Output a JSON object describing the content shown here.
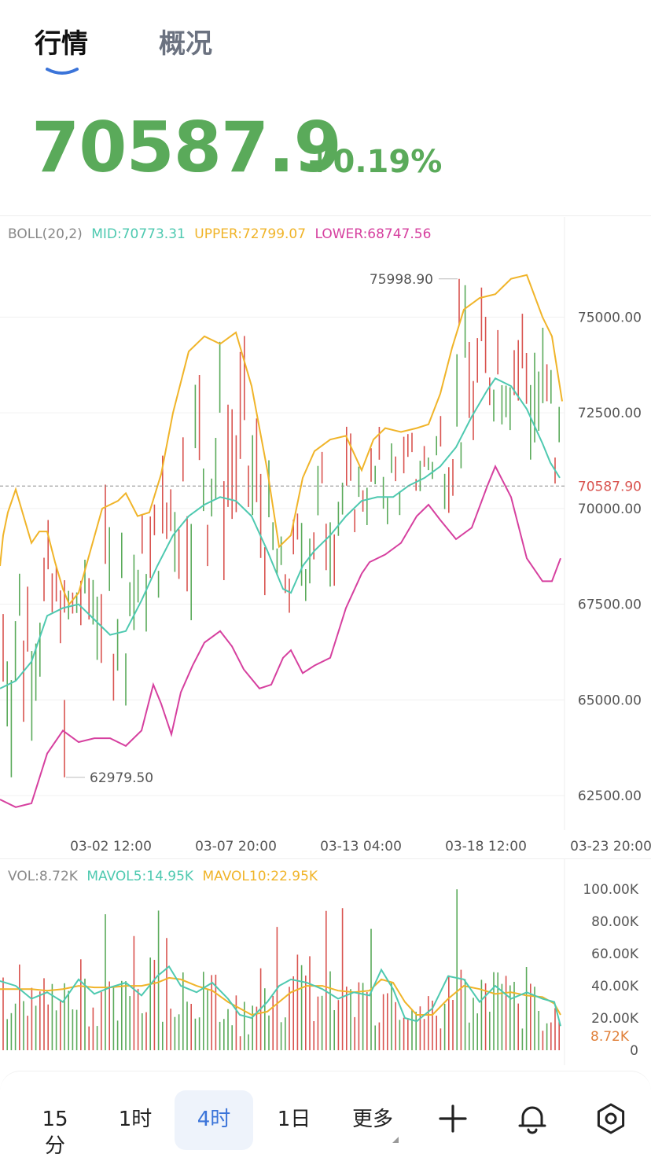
{
  "tabs": {
    "active": "行情",
    "inactive": "概况"
  },
  "ticker": {
    "price": "70587.9",
    "change": "+0.19%",
    "up_color": "#5aaa5a",
    "down_color": "#d9534f"
  },
  "chart_data": [
    {
      "type": "candlestick",
      "indicator": {
        "label": "BOLL(20,2)",
        "mid": "MID:70773.31",
        "upper": "UPPER:72799.07",
        "lower": "LOWER:68747.56"
      },
      "y_ticks": [
        "75000.00",
        "72500.00",
        "70000.00",
        "67500.00",
        "65000.00",
        "62500.00"
      ],
      "ylim": [
        61600,
        77000
      ],
      "x_ticks": [
        "03-02 12:00",
        "03-07 20:00",
        "03-13 04:00",
        "03-18 12:00",
        "03-23 20:00"
      ],
      "current_price_label": "70587.90",
      "current_price": 70587.9,
      "max_label": "75998.90",
      "max_value": 75998.9,
      "min_label": "62979.50",
      "min_value": 62979.5,
      "colors": {
        "mid": "#4ec9b0",
        "upper": "#f0b429",
        "lower": "#d6409f"
      },
      "upper_band": [
        [
          0,
          68500
        ],
        [
          4,
          69300
        ],
        [
          10,
          69900
        ],
        [
          20,
          70500
        ],
        [
          30,
          69800
        ],
        [
          40,
          69100
        ],
        [
          50,
          69400
        ],
        [
          60,
          69400
        ],
        [
          70,
          68600
        ],
        [
          80,
          67900
        ],
        [
          88,
          67500
        ],
        [
          100,
          67800
        ],
        [
          130,
          70000
        ],
        [
          150,
          70200
        ],
        [
          160,
          70400
        ],
        [
          175,
          69800
        ],
        [
          190,
          69900
        ],
        [
          205,
          70900
        ],
        [
          220,
          72500
        ],
        [
          240,
          74100
        ],
        [
          260,
          74500
        ],
        [
          280,
          74300
        ],
        [
          300,
          74600
        ],
        [
          320,
          73200
        ],
        [
          340,
          71000
        ],
        [
          355,
          69000
        ],
        [
          370,
          69300
        ],
        [
          385,
          70800
        ],
        [
          400,
          71500
        ],
        [
          420,
          71800
        ],
        [
          440,
          71900
        ],
        [
          460,
          71000
        ],
        [
          475,
          71800
        ],
        [
          490,
          72100
        ],
        [
          510,
          72000
        ],
        [
          530,
          72100
        ],
        [
          545,
          72200
        ],
        [
          560,
          73000
        ],
        [
          575,
          74200
        ],
        [
          590,
          75200
        ],
        [
          610,
          75500
        ],
        [
          630,
          75600
        ],
        [
          650,
          76000
        ],
        [
          670,
          76100
        ],
        [
          690,
          75000
        ],
        [
          702,
          74500
        ],
        [
          715,
          72800
        ]
      ],
      "mid_band": [
        [
          0,
          65300
        ],
        [
          20,
          65500
        ],
        [
          40,
          66000
        ],
        [
          60,
          67200
        ],
        [
          80,
          67400
        ],
        [
          100,
          67500
        ],
        [
          120,
          67100
        ],
        [
          140,
          66700
        ],
        [
          160,
          66800
        ],
        [
          180,
          67600
        ],
        [
          200,
          68500
        ],
        [
          220,
          69300
        ],
        [
          240,
          69800
        ],
        [
          260,
          70100
        ],
        [
          280,
          70300
        ],
        [
          300,
          70200
        ],
        [
          320,
          69800
        ],
        [
          340,
          68900
        ],
        [
          360,
          67900
        ],
        [
          370,
          67800
        ],
        [
          385,
          68500
        ],
        [
          400,
          68900
        ],
        [
          420,
          69300
        ],
        [
          440,
          69800
        ],
        [
          460,
          70200
        ],
        [
          480,
          70300
        ],
        [
          500,
          70300
        ],
        [
          520,
          70600
        ],
        [
          540,
          70800
        ],
        [
          560,
          71100
        ],
        [
          580,
          71600
        ],
        [
          600,
          72400
        ],
        [
          620,
          73100
        ],
        [
          630,
          73400
        ],
        [
          650,
          73200
        ],
        [
          670,
          72600
        ],
        [
          690,
          71700
        ],
        [
          700,
          71200
        ],
        [
          712,
          70800
        ]
      ],
      "lower_band": [
        [
          0,
          62400
        ],
        [
          20,
          62200
        ],
        [
          40,
          62300
        ],
        [
          60,
          63600
        ],
        [
          80,
          64200
        ],
        [
          100,
          63900
        ],
        [
          120,
          64000
        ],
        [
          140,
          64000
        ],
        [
          160,
          63800
        ],
        [
          180,
          64200
        ],
        [
          195,
          65400
        ],
        [
          205,
          64900
        ],
        [
          218,
          64100
        ],
        [
          230,
          65200
        ],
        [
          245,
          65900
        ],
        [
          260,
          66500
        ],
        [
          280,
          66800
        ],
        [
          295,
          66400
        ],
        [
          310,
          65800
        ],
        [
          330,
          65300
        ],
        [
          345,
          65400
        ],
        [
          360,
          66100
        ],
        [
          370,
          66300
        ],
        [
          385,
          65700
        ],
        [
          400,
          65900
        ],
        [
          420,
          66100
        ],
        [
          440,
          67400
        ],
        [
          460,
          68300
        ],
        [
          470,
          68600
        ],
        [
          490,
          68800
        ],
        [
          510,
          69100
        ],
        [
          530,
          69800
        ],
        [
          545,
          70100
        ],
        [
          560,
          69700
        ],
        [
          580,
          69200
        ],
        [
          600,
          69500
        ],
        [
          620,
          70600
        ],
        [
          630,
          71100
        ],
        [
          650,
          70300
        ],
        [
          670,
          68700
        ],
        [
          690,
          68100
        ],
        [
          702,
          68100
        ],
        [
          713,
          68700
        ]
      ]
    },
    {
      "type": "bar",
      "indicator": {
        "vol": "VOL:8.72K",
        "mavol5": "MAVOL5:14.95K",
        "mavol10": "MAVOL10:22.95K"
      },
      "y_ticks": [
        "100.00K",
        "80.00K",
        "60.00K",
        "40.00K",
        "20.00K",
        "0"
      ],
      "ylim": [
        0,
        105000
      ],
      "current_label": "8.72K",
      "current_value": 8720,
      "colors": {
        "mavol5": "#4ec9b0",
        "mavol10": "#f0b429"
      },
      "mavol5": [
        [
          0,
          43000
        ],
        [
          20,
          40000
        ],
        [
          40,
          32000
        ],
        [
          60,
          36000
        ],
        [
          80,
          30000
        ],
        [
          100,
          44000
        ],
        [
          120,
          35000
        ],
        [
          140,
          39000
        ],
        [
          160,
          42000
        ],
        [
          180,
          34000
        ],
        [
          200,
          46000
        ],
        [
          215,
          52000
        ],
        [
          230,
          40000
        ],
        [
          250,
          36000
        ],
        [
          270,
          42000
        ],
        [
          290,
          32000
        ],
        [
          305,
          22000
        ],
        [
          320,
          20000
        ],
        [
          340,
          30000
        ],
        [
          355,
          40000
        ],
        [
          370,
          44000
        ],
        [
          390,
          42000
        ],
        [
          410,
          38000
        ],
        [
          430,
          32000
        ],
        [
          450,
          36000
        ],
        [
          470,
          34000
        ],
        [
          485,
          50000
        ],
        [
          500,
          38000
        ],
        [
          515,
          20000
        ],
        [
          530,
          18000
        ],
        [
          550,
          26000
        ],
        [
          570,
          46000
        ],
        [
          590,
          44000
        ],
        [
          610,
          30000
        ],
        [
          630,
          40000
        ],
        [
          650,
          32000
        ],
        [
          670,
          36000
        ],
        [
          690,
          32000
        ],
        [
          705,
          30000
        ],
        [
          713,
          15000
        ]
      ],
      "mavol10": [
        [
          0,
          38000
        ],
        [
          20,
          38000
        ],
        [
          40,
          38000
        ],
        [
          60,
          37000
        ],
        [
          80,
          38000
        ],
        [
          100,
          40000
        ],
        [
          120,
          39000
        ],
        [
          140,
          39000
        ],
        [
          160,
          40000
        ],
        [
          180,
          40000
        ],
        [
          200,
          42000
        ],
        [
          215,
          45000
        ],
        [
          230,
          44000
        ],
        [
          250,
          40000
        ],
        [
          270,
          37000
        ],
        [
          290,
          30000
        ],
        [
          305,
          26000
        ],
        [
          320,
          22000
        ],
        [
          340,
          24000
        ],
        [
          355,
          30000
        ],
        [
          370,
          36000
        ],
        [
          390,
          40000
        ],
        [
          410,
          40000
        ],
        [
          430,
          37000
        ],
        [
          450,
          36000
        ],
        [
          470,
          37000
        ],
        [
          485,
          44000
        ],
        [
          500,
          42000
        ],
        [
          515,
          30000
        ],
        [
          530,
          22000
        ],
        [
          550,
          22000
        ],
        [
          570,
          32000
        ],
        [
          590,
          40000
        ],
        [
          610,
          38000
        ],
        [
          630,
          35000
        ],
        [
          650,
          36000
        ],
        [
          670,
          34000
        ],
        [
          690,
          33000
        ],
        [
          705,
          29000
        ],
        [
          713,
          22000
        ]
      ]
    }
  ],
  "toolbar": {
    "items": [
      "15分",
      "1时",
      "4时",
      "1日",
      "更多"
    ],
    "active_index": 2,
    "icons": [
      "plus-icon",
      "bell-icon",
      "gear-icon"
    ]
  }
}
